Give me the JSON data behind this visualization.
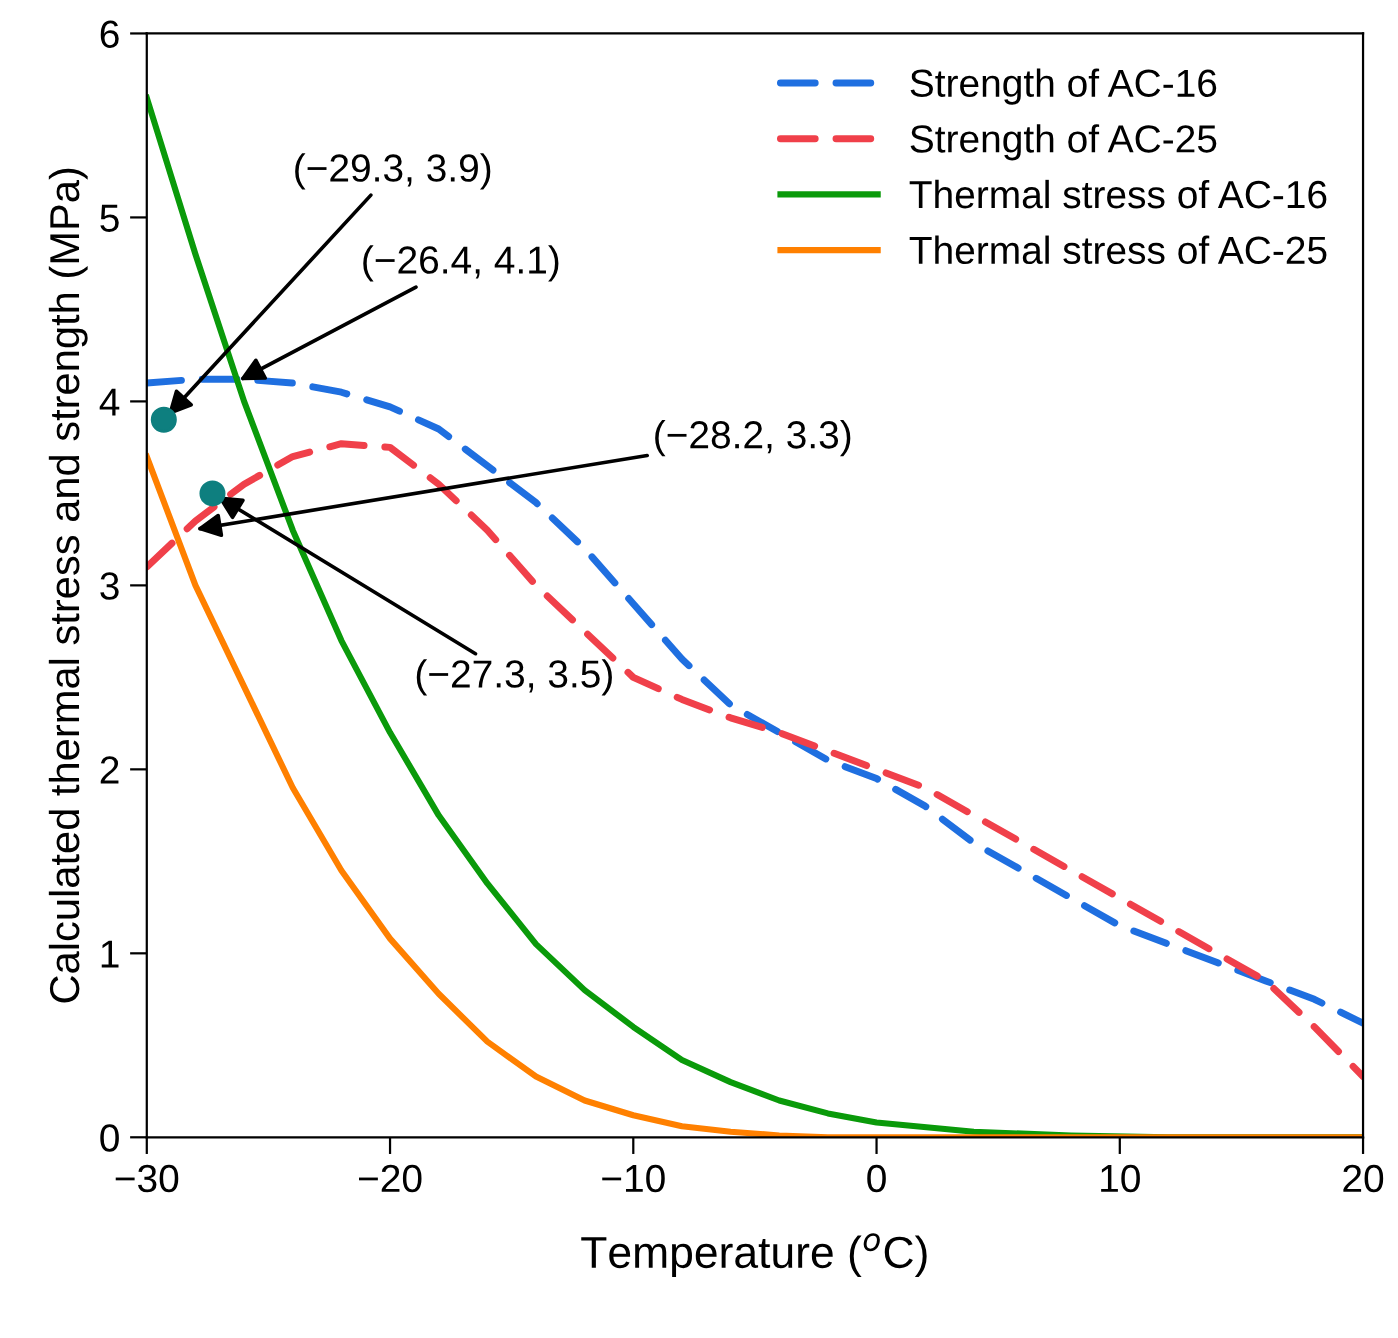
{
  "chart_data": {
    "type": "line",
    "xlabel": "Temperature ($^{o}$C)",
    "ylabel": "Calculated thermal stress and strength (MPa)",
    "xlim": [
      -30,
      20
    ],
    "ylim": [
      0,
      6
    ],
    "xticks": [
      -30,
      -20,
      -10,
      0,
      10,
      20
    ],
    "yticks": [
      0,
      1,
      2,
      3,
      4,
      5,
      6
    ],
    "grid": false,
    "legend": "top right",
    "series": [
      {
        "name": "Strength of AC-16",
        "color": "#1f6fe0",
        "line_style": "dashed",
        "x": [
          -30,
          -28,
          -26,
          -24,
          -22,
          -20,
          -18,
          -16,
          -14,
          -12,
          -10,
          -8,
          -6,
          -4,
          -2,
          0,
          2,
          4,
          6,
          8,
          10,
          12,
          14,
          16,
          18,
          20
        ],
        "values": [
          4.1,
          4.12,
          4.12,
          4.1,
          4.05,
          3.97,
          3.85,
          3.65,
          3.45,
          3.2,
          2.9,
          2.6,
          2.35,
          2.2,
          2.05,
          1.95,
          1.8,
          1.6,
          1.45,
          1.3,
          1.15,
          1.05,
          0.95,
          0.85,
          0.75,
          0.62
        ]
      },
      {
        "name": "Strength of AC-25",
        "color": "#f0404a",
        "line_style": "dashed",
        "x": [
          -30,
          -28,
          -26,
          -24,
          -22,
          -20,
          -18,
          -16,
          -14,
          -12,
          -10,
          -8,
          -6,
          -4,
          -2,
          0,
          2,
          4,
          6,
          8,
          10,
          12,
          14,
          16,
          18,
          20
        ],
        "values": [
          3.1,
          3.35,
          3.55,
          3.7,
          3.77,
          3.75,
          3.55,
          3.3,
          3.0,
          2.75,
          2.5,
          2.38,
          2.28,
          2.2,
          2.1,
          2.0,
          1.9,
          1.75,
          1.6,
          1.45,
          1.3,
          1.15,
          1.0,
          0.85,
          0.6,
          0.33
        ]
      },
      {
        "name": "Thermal stress of AC-16",
        "color": "#0a9a0a",
        "line_style": "solid",
        "x": [
          -30,
          -28,
          -26,
          -24,
          -22,
          -20,
          -18,
          -16,
          -14,
          -12,
          -10,
          -8,
          -6,
          -4,
          -2,
          0,
          4,
          8,
          12,
          20
        ],
        "values": [
          5.65,
          4.8,
          4.0,
          3.3,
          2.7,
          2.2,
          1.75,
          1.38,
          1.05,
          0.8,
          0.6,
          0.42,
          0.3,
          0.2,
          0.13,
          0.08,
          0.03,
          0.01,
          0.0,
          0.0
        ]
      },
      {
        "name": "Thermal stress of AC-25",
        "color": "#ff8000",
        "line_style": "solid",
        "x": [
          -30,
          -28,
          -26,
          -24,
          -22,
          -20,
          -18,
          -16,
          -14,
          -12,
          -10,
          -8,
          -6,
          -4,
          -2,
          20
        ],
        "values": [
          3.7,
          3.0,
          2.45,
          1.9,
          1.45,
          1.08,
          0.78,
          0.52,
          0.33,
          0.2,
          0.12,
          0.06,
          0.03,
          0.01,
          0.0,
          0.0
        ]
      },
      {
        "type": "scatter",
        "color": "#0e7f7f",
        "marker": "circle",
        "x": [
          -29.3,
          -27.3
        ],
        "values": [
          3.9,
          3.5
        ]
      }
    ],
    "annotations": [
      {
        "text": "(−29.3, 3.9)",
        "x": -29.3,
        "y": 3.9
      },
      {
        "text": "(−26.4, 4.1)",
        "x": -26.4,
        "y": 4.1
      },
      {
        "text": "(−28.2, 3.3)",
        "x": -28.2,
        "y": 3.3
      },
      {
        "text": "(−27.3, 3.5)",
        "x": -27.3,
        "y": 3.5
      }
    ]
  }
}
